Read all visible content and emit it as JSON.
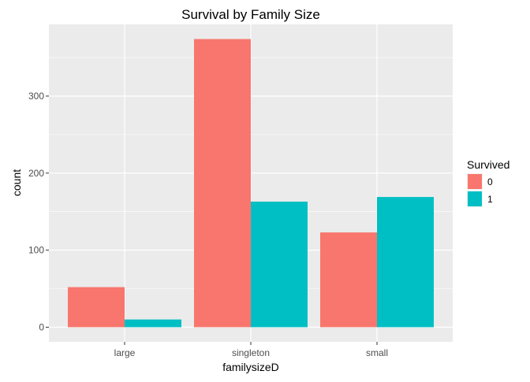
{
  "chart_data": {
    "type": "bar",
    "title": "Survival by Family Size",
    "xlabel": "familysizeD",
    "ylabel": "count",
    "categories": [
      "large",
      "singleton",
      "small"
    ],
    "series": [
      {
        "name": "0",
        "values": [
          52,
          374,
          123
        ],
        "color": "#F8766D"
      },
      {
        "name": "1",
        "values": [
          10,
          163,
          169
        ],
        "color": "#00BFC4"
      }
    ],
    "ylim": [
      -19,
      393
    ],
    "yticks": [
      0,
      100,
      200,
      300
    ],
    "yticks_labels": [
      "0",
      "100",
      "200",
      "300"
    ],
    "grid": true,
    "panel_background": "#EBEBEB",
    "grid_color": "#FFFFFF",
    "legend": {
      "title": "Survived",
      "placement": "right",
      "labels": [
        "0",
        "1"
      ]
    }
  }
}
